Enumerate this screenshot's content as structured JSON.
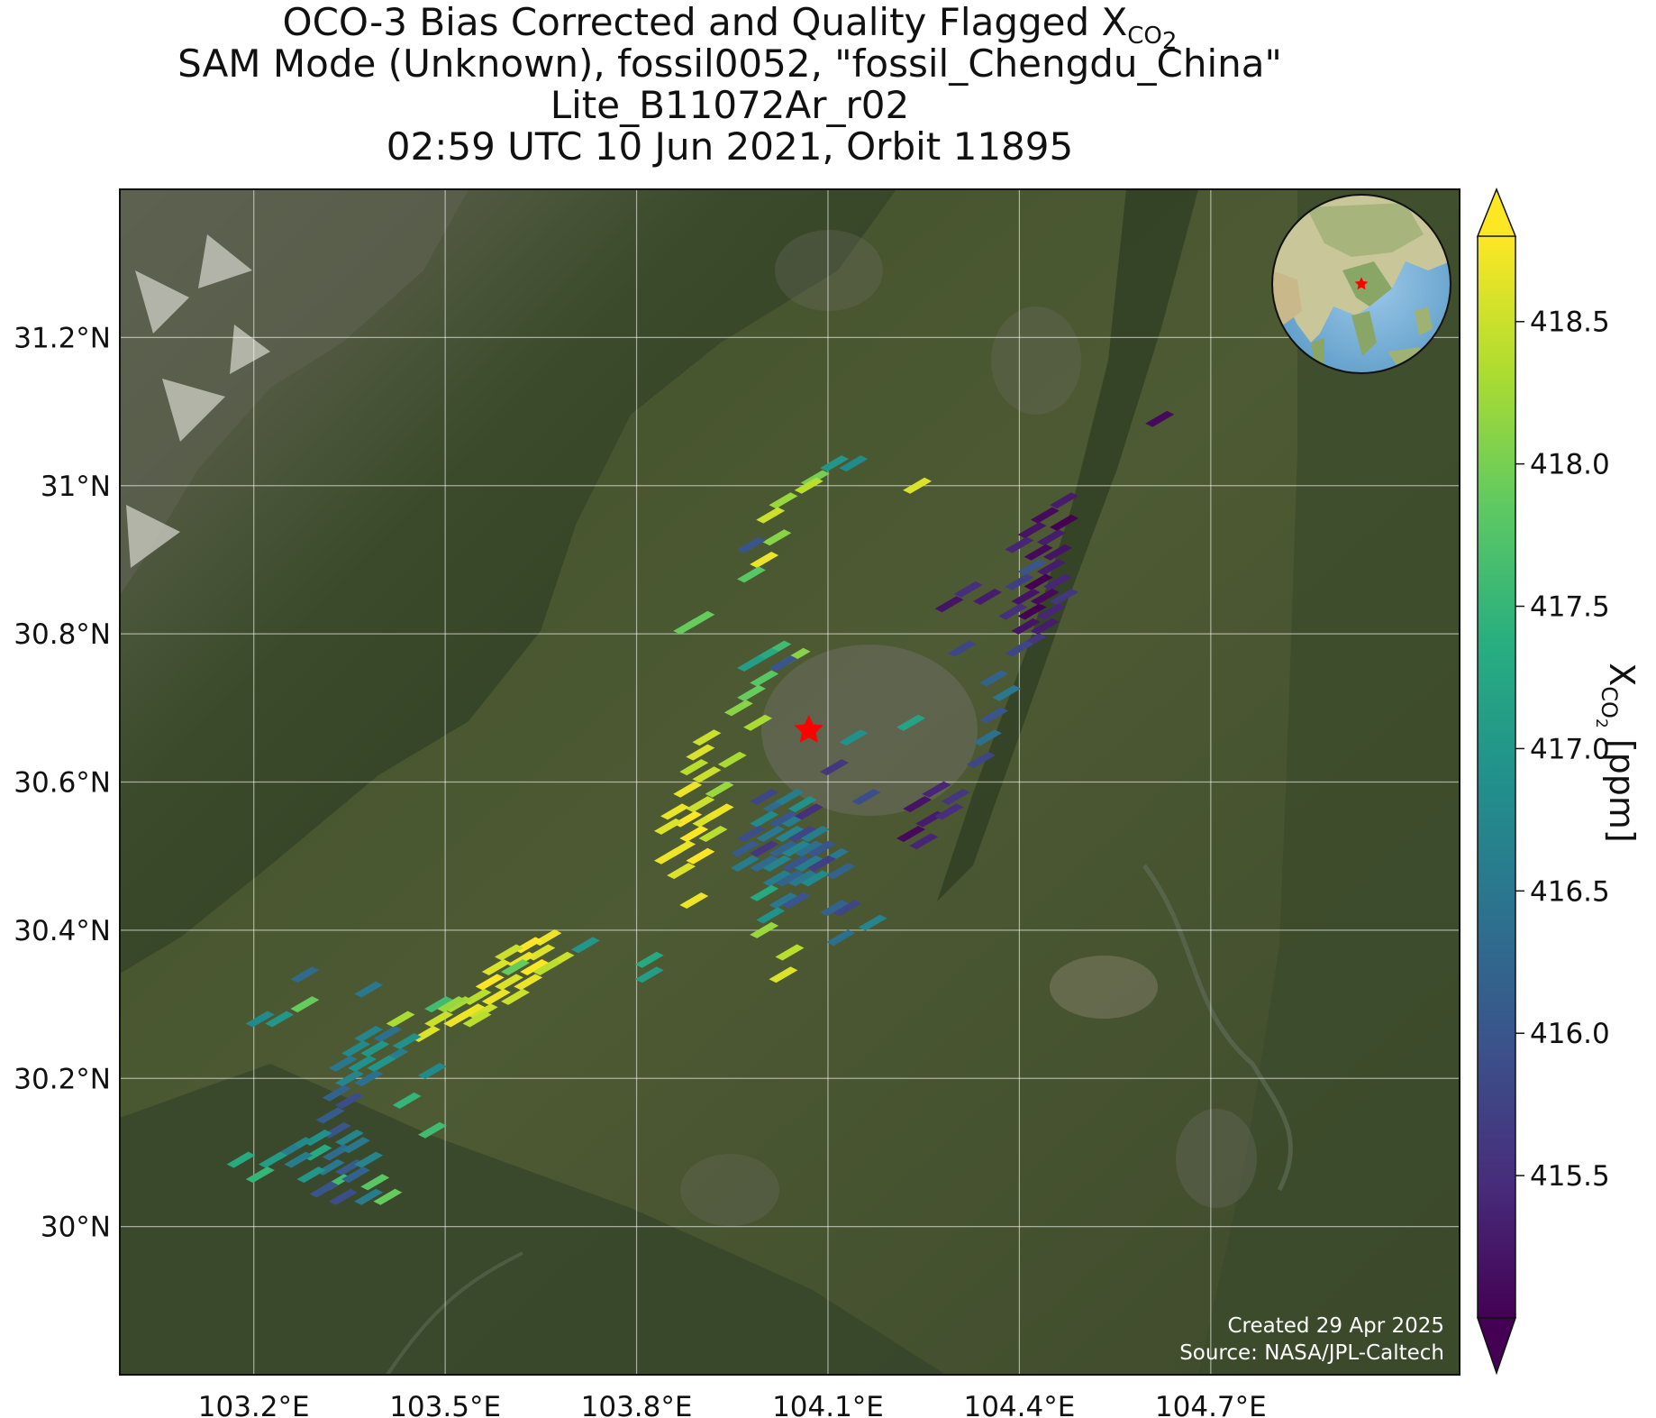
{
  "title": {
    "line1_prefix": "OCO-3 Bias Corrected and Quality Flagged X",
    "line1_sub": "CO",
    "line1_subsub": "2",
    "line2": "SAM Mode (Unknown), fossil0052, \"fossil_Chengdu_China\"",
    "line3": "Lite_B11072Ar_r02",
    "line4": "02:59 UTC 10 Jun 2021, Orbit 11895"
  },
  "map": {
    "lon_range": [
      102.99,
      105.09
    ],
    "lat_range": [
      29.8,
      31.4
    ],
    "lon_ticks": [
      103.2,
      103.5,
      103.8,
      104.1,
      104.4,
      104.7
    ],
    "lon_tick_labels": [
      "103.2°E",
      "103.5°E",
      "103.8°E",
      "104.1°E",
      "104.4°E",
      "104.7°E"
    ],
    "lat_ticks": [
      30.0,
      30.2,
      30.4,
      30.6,
      30.8,
      31.0,
      31.2
    ],
    "lat_tick_labels": [
      "30°N",
      "30.2°N",
      "30.4°N",
      "30.6°N",
      "30.8°N",
      "31°N",
      "31.2°N"
    ],
    "gridlines": true,
    "basemap": "satellite imagery",
    "target_marker": {
      "lon": 104.07,
      "lat": 30.67,
      "color": "#ff0000",
      "shape": "star"
    },
    "inset_globe": {
      "center_region": "Asia",
      "marker_color": "#ff0000"
    },
    "credits": [
      "Created 29 Apr 2025",
      "Source: NASA/JPL-Caltech"
    ]
  },
  "colorbar": {
    "colormap": "viridis",
    "range": [
      415.0,
      418.8
    ],
    "extend": "both",
    "ticks": [
      415.5,
      416.0,
      416.5,
      417.0,
      417.5,
      418.0,
      418.5
    ],
    "tick_labels": [
      "415.5",
      "416.0",
      "416.5",
      "417.0",
      "417.5",
      "418.0",
      "418.5"
    ],
    "label_prefix": "X",
    "label_sub": "CO",
    "label_subsub": "2",
    "label_suffix": " [ppm]"
  },
  "chart_data": {
    "type": "scatter",
    "xlabel": "",
    "ylabel": "",
    "xlim": [
      102.99,
      105.09
    ],
    "ylim": [
      29.8,
      31.4
    ],
    "value_unit": "ppm",
    "points": [
      [
        104.11,
        31.03,
        417.0
      ],
      [
        104.14,
        31.03,
        416.8
      ],
      [
        104.08,
        31.01,
        418.0
      ],
      [
        104.07,
        31.0,
        418.4
      ],
      [
        104.24,
        31.0,
        418.6
      ],
      [
        104.03,
        30.98,
        418.2
      ],
      [
        104.01,
        30.96,
        418.5
      ],
      [
        104.02,
        30.93,
        418.1
      ],
      [
        103.98,
        30.92,
        416.0
      ],
      [
        104.0,
        30.9,
        418.7
      ],
      [
        103.98,
        30.88,
        417.8
      ],
      [
        103.9,
        30.82,
        417.9
      ],
      [
        103.88,
        30.81,
        417.9
      ],
      [
        104.02,
        30.78,
        417.6
      ],
      [
        104.0,
        30.77,
        417.3
      ],
      [
        104.05,
        30.77,
        418.1
      ],
      [
        103.98,
        30.76,
        417.1
      ],
      [
        104.03,
        30.76,
        416.0
      ],
      [
        104.0,
        30.74,
        417.8
      ],
      [
        103.98,
        30.72,
        417.9
      ],
      [
        103.96,
        30.7,
        418.1
      ],
      [
        103.99,
        30.68,
        418.3
      ],
      [
        103.91,
        30.66,
        418.5
      ],
      [
        103.9,
        30.64,
        418.6
      ],
      [
        103.89,
        30.62,
        418.4
      ],
      [
        103.91,
        30.61,
        418.5
      ],
      [
        103.95,
        30.63,
        418.3
      ],
      [
        103.88,
        30.59,
        418.7
      ],
      [
        103.9,
        30.57,
        418.5
      ],
      [
        103.93,
        30.59,
        418.2
      ],
      [
        103.86,
        30.56,
        418.7
      ],
      [
        103.88,
        30.55,
        418.8
      ],
      [
        103.91,
        30.55,
        418.6
      ],
      [
        103.93,
        30.56,
        418.7
      ],
      [
        103.85,
        30.54,
        418.6
      ],
      [
        103.89,
        30.53,
        418.8
      ],
      [
        103.92,
        30.53,
        418.4
      ],
      [
        103.87,
        30.51,
        418.7
      ],
      [
        103.9,
        30.5,
        418.8
      ],
      [
        103.85,
        30.5,
        418.7
      ],
      [
        103.87,
        30.48,
        418.6
      ],
      [
        103.89,
        30.44,
        418.7
      ],
      [
        104.0,
        30.58,
        415.8
      ],
      [
        104.02,
        30.57,
        416.3
      ],
      [
        104.04,
        30.58,
        416.6
      ],
      [
        104.06,
        30.57,
        416.9
      ],
      [
        104.0,
        30.55,
        416.8
      ],
      [
        104.03,
        30.55,
        416.0
      ],
      [
        104.05,
        30.55,
        416.6
      ],
      [
        104.07,
        30.56,
        415.5
      ],
      [
        103.98,
        30.53,
        415.9
      ],
      [
        104.01,
        30.53,
        416.5
      ],
      [
        104.04,
        30.53,
        416.7
      ],
      [
        104.06,
        30.53,
        415.8
      ],
      [
        104.08,
        30.53,
        416.6
      ],
      [
        103.97,
        30.51,
        416.1
      ],
      [
        104.0,
        30.51,
        415.6
      ],
      [
        104.03,
        30.51,
        416.2
      ],
      [
        104.05,
        30.51,
        416.7
      ],
      [
        104.07,
        30.51,
        416.4
      ],
      [
        104.09,
        30.51,
        416.0
      ],
      [
        104.11,
        30.5,
        416.5
      ],
      [
        103.97,
        30.49,
        416.6
      ],
      [
        104.0,
        30.49,
        416.3
      ],
      [
        104.02,
        30.49,
        416.7
      ],
      [
        104.05,
        30.49,
        416.0
      ],
      [
        104.07,
        30.49,
        416.6
      ],
      [
        104.09,
        30.49,
        415.7
      ],
      [
        104.12,
        30.48,
        416.2
      ],
      [
        104.02,
        30.47,
        416.6
      ],
      [
        104.04,
        30.47,
        416.2
      ],
      [
        104.06,
        30.47,
        416.5
      ],
      [
        104.08,
        30.47,
        416.8
      ],
      [
        104.0,
        30.45,
        417.3
      ],
      [
        104.03,
        30.44,
        416.5
      ],
      [
        104.05,
        30.44,
        416.0
      ],
      [
        104.01,
        30.42,
        416.9
      ],
      [
        104.0,
        30.4,
        418.2
      ],
      [
        104.04,
        30.37,
        418.4
      ],
      [
        104.03,
        30.34,
        418.6
      ],
      [
        104.12,
        30.39,
        416.4
      ],
      [
        104.17,
        30.41,
        416.7
      ],
      [
        104.13,
        30.43,
        415.8
      ],
      [
        104.16,
        30.58,
        415.9
      ],
      [
        104.11,
        30.62,
        415.6
      ],
      [
        104.14,
        30.66,
        416.9
      ],
      [
        104.23,
        30.68,
        417.2
      ],
      [
        104.27,
        30.59,
        415.4
      ],
      [
        104.24,
        30.57,
        415.2
      ],
      [
        104.26,
        30.55,
        415.3
      ],
      [
        104.29,
        30.56,
        415.5
      ],
      [
        104.23,
        30.53,
        415.1
      ],
      [
        104.25,
        30.52,
        415.4
      ],
      [
        104.3,
        30.58,
        415.6
      ],
      [
        104.34,
        30.63,
        415.8
      ],
      [
        104.36,
        30.69,
        416.0
      ],
      [
        104.35,
        30.66,
        416.4
      ],
      [
        104.38,
        30.72,
        416.5
      ],
      [
        104.36,
        30.74,
        416.2
      ],
      [
        104.31,
        30.78,
        415.8
      ],
      [
        104.47,
        30.98,
        415.3
      ],
      [
        104.44,
        30.96,
        415.1
      ],
      [
        104.47,
        30.95,
        415.0
      ],
      [
        104.42,
        30.94,
        415.2
      ],
      [
        104.45,
        30.93,
        415.3
      ],
      [
        104.4,
        30.92,
        415.4
      ],
      [
        104.43,
        30.91,
        415.1
      ],
      [
        104.46,
        30.91,
        415.2
      ],
      [
        104.42,
        30.89,
        416.0
      ],
      [
        104.45,
        30.89,
        415.3
      ],
      [
        104.4,
        30.87,
        415.7
      ],
      [
        104.43,
        30.87,
        415.0
      ],
      [
        104.46,
        30.87,
        415.4
      ],
      [
        104.41,
        30.85,
        415.2
      ],
      [
        104.44,
        30.85,
        415.1
      ],
      [
        104.47,
        30.85,
        415.6
      ],
      [
        104.42,
        30.83,
        415.0
      ],
      [
        104.45,
        30.83,
        415.4
      ],
      [
        104.39,
        30.83,
        415.5
      ],
      [
        104.41,
        30.81,
        415.2
      ],
      [
        104.44,
        30.81,
        415.3
      ],
      [
        104.42,
        30.79,
        415.6
      ],
      [
        104.4,
        30.78,
        415.8
      ],
      [
        104.35,
        30.85,
        415.3
      ],
      [
        104.32,
        30.86,
        415.5
      ],
      [
        104.29,
        30.84,
        415.2
      ],
      [
        104.62,
        31.09,
        415.1
      ],
      [
        103.66,
        30.39,
        418.7
      ],
      [
        103.63,
        30.38,
        418.8
      ],
      [
        103.6,
        30.37,
        418.5
      ],
      [
        103.65,
        30.37,
        418.6
      ],
      [
        103.62,
        30.36,
        418.7
      ],
      [
        103.68,
        30.36,
        418.5
      ],
      [
        103.58,
        30.35,
        418.6
      ],
      [
        103.61,
        30.35,
        417.9
      ],
      [
        103.64,
        30.35,
        418.8
      ],
      [
        103.66,
        30.35,
        418.4
      ],
      [
        103.57,
        30.33,
        418.8
      ],
      [
        103.6,
        30.33,
        418.6
      ],
      [
        103.63,
        30.33,
        418.7
      ],
      [
        103.55,
        30.31,
        418.4
      ],
      [
        103.58,
        30.31,
        418.7
      ],
      [
        103.61,
        30.31,
        418.5
      ],
      [
        103.52,
        30.3,
        418.3
      ],
      [
        103.54,
        30.29,
        418.7
      ],
      [
        103.56,
        30.29,
        418.5
      ],
      [
        103.49,
        30.3,
        417.6
      ],
      [
        103.51,
        30.3,
        418.2
      ],
      [
        103.49,
        30.28,
        418.5
      ],
      [
        103.52,
        30.28,
        418.7
      ],
      [
        103.55,
        30.28,
        418.4
      ],
      [
        103.47,
        30.26,
        418.6
      ],
      [
        103.72,
        30.38,
        417.0
      ],
      [
        103.43,
        30.28,
        418.3
      ],
      [
        103.41,
        30.26,
        416.4
      ],
      [
        103.38,
        30.26,
        416.7
      ],
      [
        103.44,
        30.25,
        416.9
      ],
      [
        103.36,
        30.24,
        416.8
      ],
      [
        103.39,
        30.24,
        417.0
      ],
      [
        103.42,
        30.23,
        416.6
      ],
      [
        103.34,
        30.22,
        416.5
      ],
      [
        103.37,
        30.22,
        416.9
      ],
      [
        103.4,
        30.22,
        417.0
      ],
      [
        103.35,
        30.2,
        416.7
      ],
      [
        103.38,
        30.2,
        416.4
      ],
      [
        103.33,
        30.18,
        416.2
      ],
      [
        103.35,
        30.17,
        415.9
      ],
      [
        103.32,
        30.15,
        416.1
      ],
      [
        103.48,
        30.21,
        416.8
      ],
      [
        103.44,
        30.17,
        417.5
      ],
      [
        103.48,
        30.13,
        417.6
      ],
      [
        103.33,
        30.13,
        416.0
      ],
      [
        103.3,
        30.12,
        416.9
      ],
      [
        103.35,
        30.12,
        416.7
      ],
      [
        103.27,
        30.11,
        416.8
      ],
      [
        103.3,
        30.1,
        417.3
      ],
      [
        103.33,
        30.1,
        416.3
      ],
      [
        103.36,
        30.11,
        416.5
      ],
      [
        103.25,
        30.1,
        416.6
      ],
      [
        103.23,
        30.09,
        417.1
      ],
      [
        103.27,
        30.09,
        416.6
      ],
      [
        103.32,
        30.08,
        416.5
      ],
      [
        103.35,
        30.08,
        416.1
      ],
      [
        103.38,
        30.09,
        416.7
      ],
      [
        103.21,
        30.07,
        417.5
      ],
      [
        103.29,
        30.07,
        417.0
      ],
      [
        103.33,
        30.06,
        417.6
      ],
      [
        103.36,
        30.07,
        416.2
      ],
      [
        103.39,
        30.06,
        417.8
      ],
      [
        103.31,
        30.05,
        416.0
      ],
      [
        103.34,
        30.04,
        415.9
      ],
      [
        103.38,
        30.04,
        416.6
      ],
      [
        103.41,
        30.04,
        417.9
      ],
      [
        103.18,
        30.09,
        417.3
      ],
      [
        103.21,
        30.28,
        416.8
      ],
      [
        103.24,
        30.28,
        417.0
      ],
      [
        103.28,
        30.3,
        417.9
      ],
      [
        103.28,
        30.34,
        416.3
      ],
      [
        103.38,
        30.32,
        416.5
      ],
      [
        103.82,
        30.36,
        417.3
      ],
      [
        103.82,
        30.34,
        417.1
      ],
      [
        104.11,
        30.43,
        416.2
      ]
    ]
  }
}
